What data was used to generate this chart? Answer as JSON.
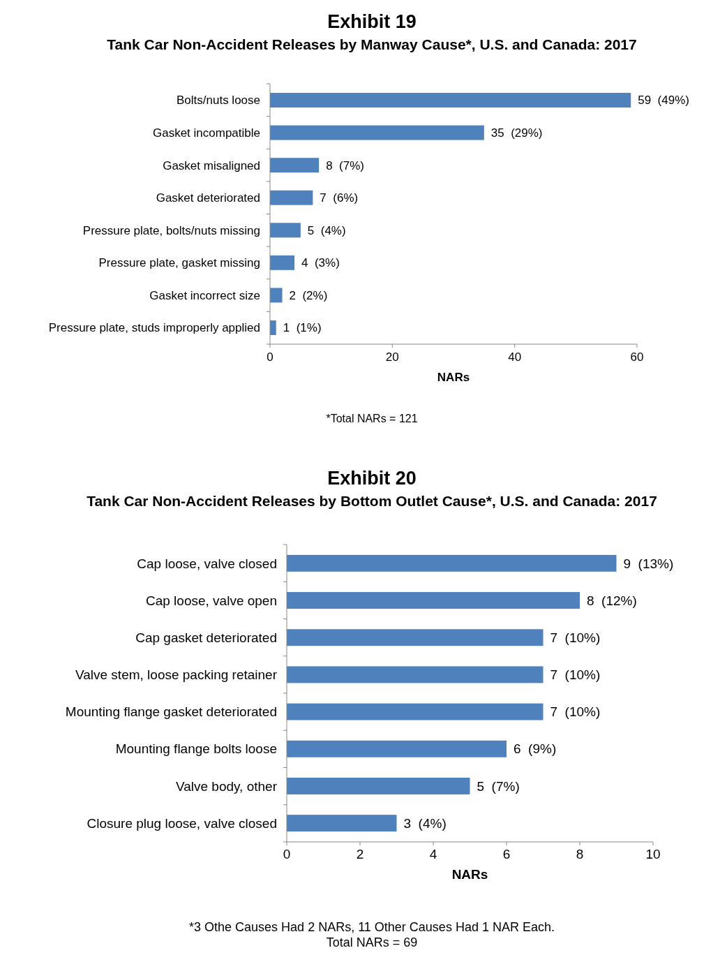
{
  "chart_data": [
    {
      "type": "bar",
      "orientation": "horizontal",
      "title": "Exhibit 19",
      "subtitle": "Tank Car Non-Accident Releases by Manway Cause*, U.S. and Canada: 2017",
      "xlabel": "NARs",
      "categories": [
        "Bolts/nuts loose",
        "Gasket incompatible",
        "Gasket misaligned",
        "Gasket deteriorated",
        "Pressure plate, bolts/nuts missing",
        "Pressure plate, gasket missing",
        "Gasket incorrect size",
        "Pressure plate, studs improperly applied"
      ],
      "values": [
        59,
        35,
        8,
        7,
        5,
        4,
        2,
        1
      ],
      "value_labels": [
        "59  (49%)",
        "35  (29%)",
        "8  (7%)",
        "7  (6%)",
        "5  (4%)",
        "4  (3%)",
        "2  (2%)",
        "1  (1%)"
      ],
      "color": "#4f81bd",
      "xlim": [
        0,
        60
      ],
      "xticks": [
        0,
        20,
        40,
        60
      ],
      "grid": false,
      "annotations": [
        "*Total NARs = 121"
      ]
    },
    {
      "type": "bar",
      "orientation": "horizontal",
      "title": "Exhibit 20",
      "subtitle": "Tank Car Non-Accident Releases by Bottom Outlet Cause*, U.S. and Canada: 2017",
      "xlabel": "NARs",
      "categories": [
        "Cap loose, valve closed",
        "Cap loose, valve open",
        "Cap gasket deteriorated",
        "Valve stem, loose packing retainer",
        "Mounting flange gasket deteriorated",
        "Mounting flange bolts loose",
        "Valve body, other",
        "Closure plug loose, valve closed"
      ],
      "values": [
        9,
        8,
        7,
        7,
        7,
        6,
        5,
        3
      ],
      "value_labels": [
        "9  (13%)",
        "8  (12%)",
        "7  (10%)",
        "7  (10%)",
        "7  (10%)",
        "6  (9%)",
        "5  (7%)",
        "3  (4%)"
      ],
      "color": "#4f81bd",
      "xlim": [
        0,
        10
      ],
      "xticks": [
        0,
        2,
        4,
        6,
        8,
        10
      ],
      "grid": false,
      "annotations": [
        "*3 Othe Causes Had 2 NARs, 11 Other Causes Had 1 NAR Each.",
        "Total NARs = 69"
      ]
    }
  ]
}
